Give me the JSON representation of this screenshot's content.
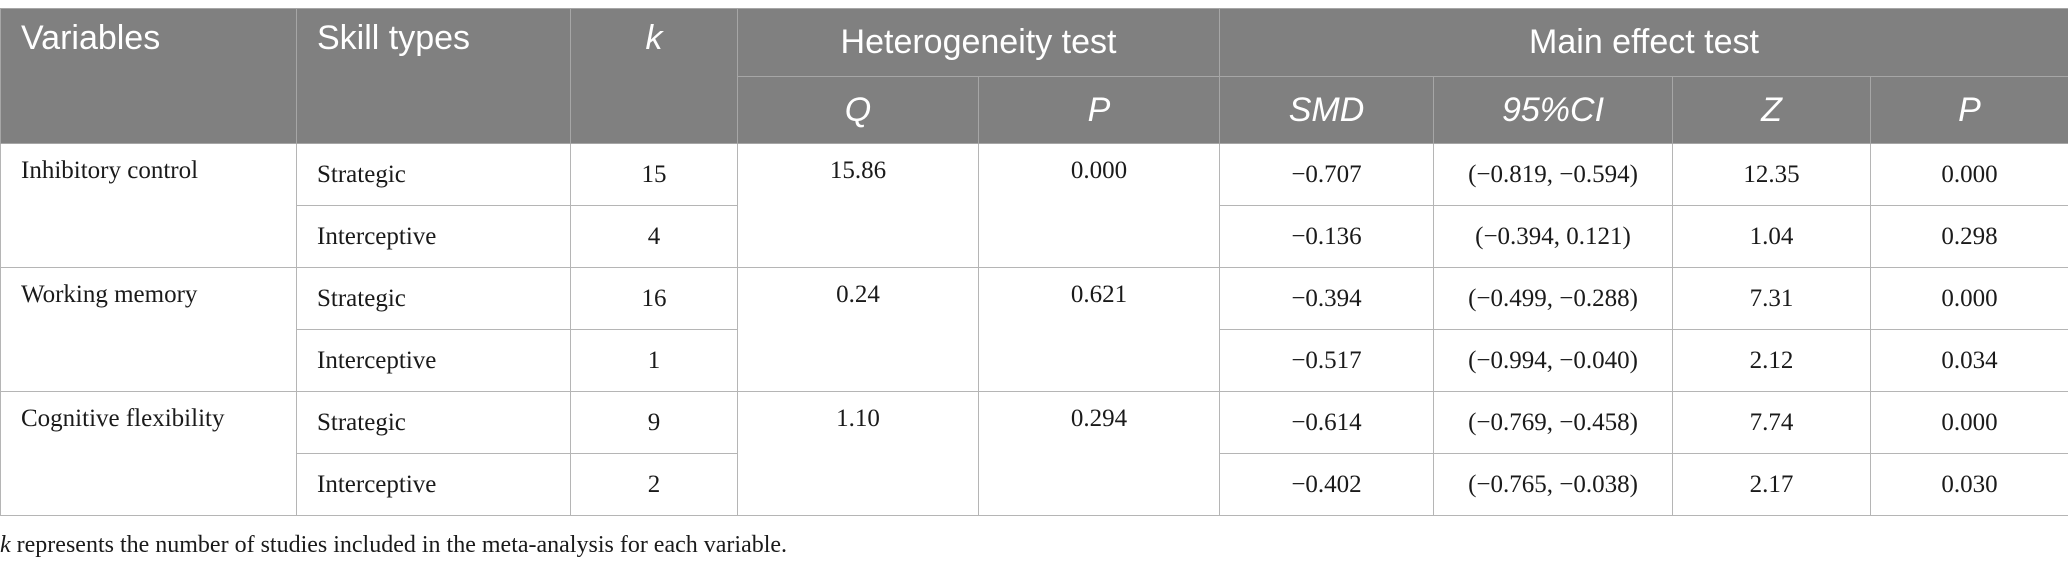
{
  "header": {
    "variables": "Variables",
    "skill_types": "Skill types",
    "k": "k",
    "heterogeneity": "Heterogeneity test",
    "main_effect": "Main effect test",
    "q": "Q",
    "p1": "P",
    "smd": "SMD",
    "ci": "95%CI",
    "z": "Z",
    "p2": "P"
  },
  "groups": [
    {
      "variable": "Inhibitory control",
      "q": "15.86",
      "p": "0.000",
      "rows": [
        {
          "skill": "Strategic",
          "k": "15",
          "smd": "−0.707",
          "ci": "(−0.819, −0.594)",
          "z": "12.35",
          "p": "0.000"
        },
        {
          "skill": "Interceptive",
          "k": "4",
          "smd": "−0.136",
          "ci": "(−0.394, 0.121)",
          "z": "1.04",
          "p": "0.298"
        }
      ]
    },
    {
      "variable": "Working memory",
      "q": "0.24",
      "p": "0.621",
      "rows": [
        {
          "skill": "Strategic",
          "k": "16",
          "smd": "−0.394",
          "ci": "(−0.499, −0.288)",
          "z": "7.31",
          "p": "0.000"
        },
        {
          "skill": "Interceptive",
          "k": "1",
          "smd": "−0.517",
          "ci": "(−0.994, −0.040)",
          "z": "2.12",
          "p": "0.034"
        }
      ]
    },
    {
      "variable": "Cognitive flexibility",
      "q": "1.10",
      "p": "0.294",
      "rows": [
        {
          "skill": "Strategic",
          "k": "9",
          "smd": "−0.614",
          "ci": "(−0.769, −0.458)",
          "z": "7.74",
          "p": "0.000"
        },
        {
          "skill": "Interceptive",
          "k": "2",
          "smd": "−0.402",
          "ci": "(−0.765, −0.038)",
          "z": "2.17",
          "p": "0.030"
        }
      ]
    }
  ],
  "footnote": {
    "k_symbol": "k",
    "text": " represents the number of studies included in the meta-analysis for each variable."
  }
}
